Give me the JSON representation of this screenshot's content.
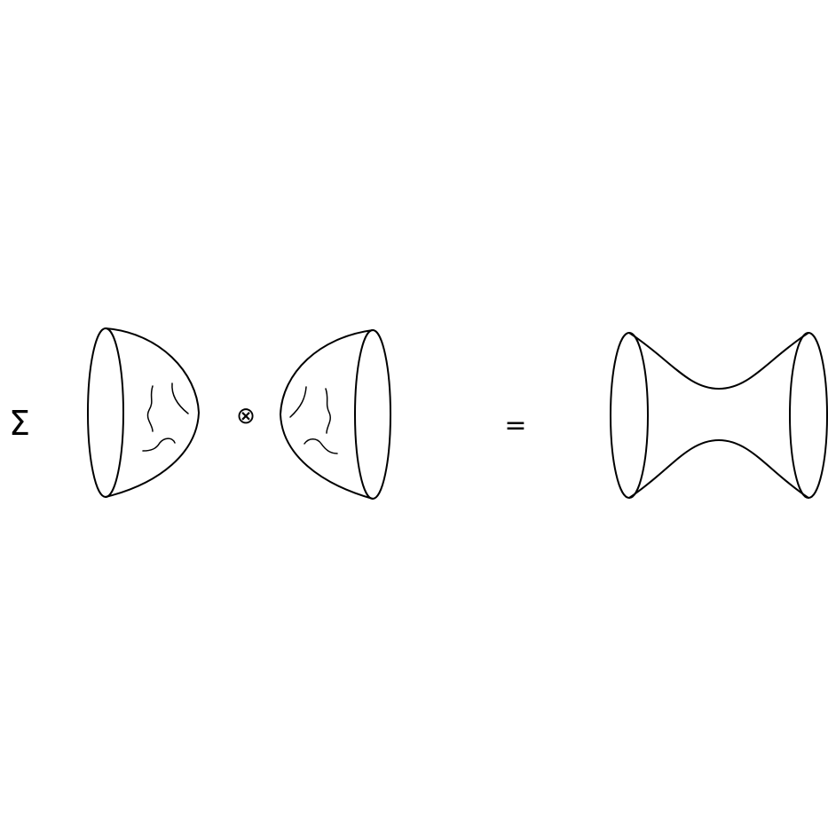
{
  "equation": {
    "sum_symbol": "Σ",
    "tensor_symbol": "⊗",
    "equals_symbol": "="
  },
  "colors": {
    "ink": "#000000",
    "background": "#ffffff"
  }
}
